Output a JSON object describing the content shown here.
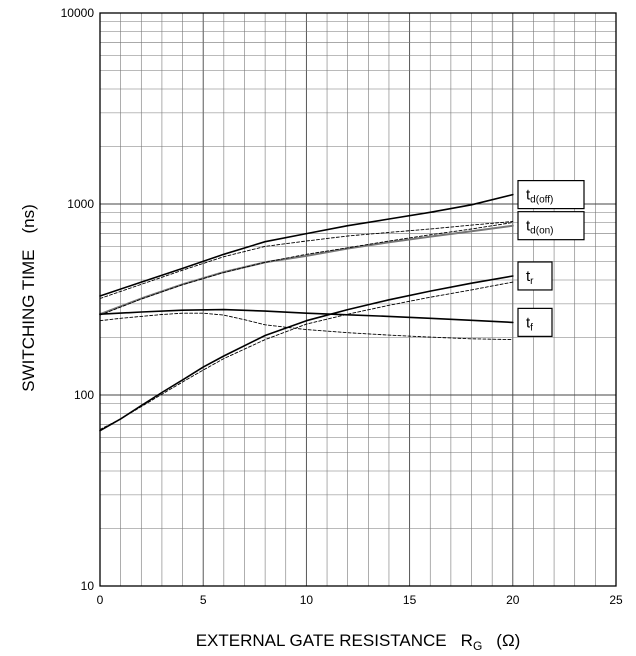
{
  "chart_data": {
    "type": "line",
    "xlabel": "EXTERNAL GATE RESISTANCE",
    "xlabel_symbol": "R",
    "xlabel_symbol_sub": "G",
    "xlabel_unit": "(Ω)",
    "ylabel": "SWITCHING TIME",
    "ylabel_unit": "(ns)",
    "xlim": [
      0,
      25
    ],
    "ylim": [
      10,
      10000
    ],
    "yscale": "log",
    "grid": true,
    "x_ticks": [
      "0",
      "5",
      "10",
      "15",
      "20",
      "25"
    ],
    "y_ticks": [
      "10",
      "100",
      "1000",
      "10000"
    ],
    "series": [
      {
        "name": "t",
        "sub": "d(off)",
        "color": "#000000",
        "style": "solid",
        "width": 1.6,
        "x": [
          0,
          2,
          4,
          6,
          8,
          10,
          12,
          14,
          16,
          18,
          20
        ],
        "y": [
          330,
          390,
          460,
          545,
          635,
          700,
          770,
          835,
          905,
          990,
          1120
        ]
      },
      {
        "name": "t",
        "sub": "d(on)",
        "color": "#777777",
        "style": "solid",
        "width": 2.0,
        "x": [
          0,
          2,
          4,
          6,
          8,
          10,
          12,
          14,
          16,
          18,
          20
        ],
        "y": [
          265,
          320,
          380,
          440,
          495,
          535,
          585,
          630,
          675,
          720,
          770
        ]
      },
      {
        "name": "",
        "sub": "",
        "color": "#000000",
        "style": "dashed",
        "width": 0.9,
        "x": [
          0,
          2,
          4,
          6,
          8,
          10,
          12,
          14,
          16,
          18,
          20
        ],
        "y": [
          320,
          380,
          450,
          530,
          600,
          640,
          680,
          710,
          740,
          775,
          810
        ]
      },
      {
        "name": "",
        "sub": "",
        "color": "#000000",
        "style": "dashed",
        "width": 0.9,
        "x": [
          0,
          2,
          4,
          6,
          8,
          10,
          12,
          14,
          16,
          18,
          20
        ],
        "y": [
          262,
          318,
          378,
          438,
          495,
          545,
          590,
          640,
          690,
          740,
          800
        ]
      },
      {
        "name": "t",
        "sub": "r",
        "color": "#000000",
        "style": "solid",
        "width": 1.6,
        "x": [
          0,
          1,
          2,
          3,
          4,
          5,
          6,
          8,
          10,
          12,
          14,
          16,
          18,
          20
        ],
        "y": [
          65,
          75,
          88,
          103,
          120,
          140,
          160,
          205,
          245,
          280,
          315,
          350,
          385,
          420
        ]
      },
      {
        "name": "",
        "sub": "",
        "color": "#000000",
        "style": "dashed",
        "width": 0.9,
        "x": [
          0,
          1,
          2,
          3,
          4,
          5,
          6,
          8,
          10,
          12,
          14,
          16,
          18,
          20
        ],
        "y": [
          66,
          75,
          87,
          101,
          117,
          135,
          155,
          195,
          235,
          265,
          295,
          325,
          355,
          390
        ]
      },
      {
        "name": "t",
        "sub": "f",
        "color": "#000000",
        "style": "solid",
        "width": 1.6,
        "x": [
          0,
          2,
          4,
          6,
          8,
          10,
          12,
          14,
          16,
          18,
          20
        ],
        "y": [
          265,
          272,
          278,
          280,
          275,
          268,
          263,
          258,
          252,
          246,
          240
        ]
      },
      {
        "name": "",
        "sub": "",
        "color": "#000000",
        "style": "dashed",
        "width": 0.9,
        "x": [
          0,
          1,
          2,
          3,
          4,
          5,
          6,
          7,
          8,
          10,
          12,
          14,
          16,
          18,
          20
        ],
        "y": [
          245,
          252,
          258,
          264,
          268,
          268,
          262,
          248,
          233,
          220,
          212,
          206,
          201,
          197,
          195
        ]
      }
    ]
  }
}
